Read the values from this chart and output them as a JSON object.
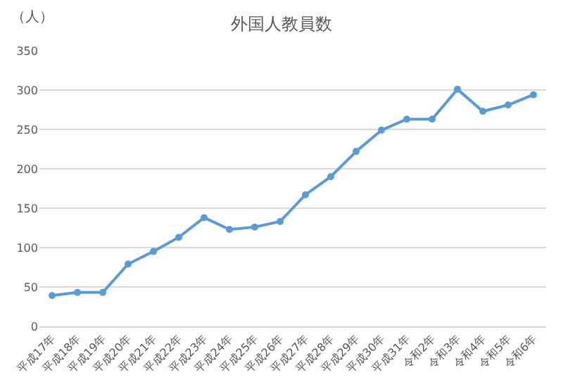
{
  "chart_data": {
    "type": "line",
    "title": "外国人教員数",
    "ylabel": "（人）",
    "categories": [
      "平成17年",
      "平成18年",
      "平成19年",
      "平成20年",
      "平成21年",
      "平成22年",
      "平成23年",
      "平成24年",
      "平成25年",
      "平成26年",
      "平成27年",
      "平成28年",
      "平成29年",
      "平成30年",
      "平成31年",
      "令和2年",
      "令和3年",
      "令和4年",
      "令和5年",
      "令和6年"
    ],
    "series": [
      {
        "color": "#5b9bd5",
        "values": [
          39,
          43,
          43,
          79,
          95,
          113,
          138,
          123,
          126,
          133,
          167,
          190,
          222,
          249,
          263,
          263,
          301,
          273,
          281,
          294
        ]
      }
    ],
    "ylim": [
      0,
      350
    ],
    "yticks": [
      0,
      50,
      100,
      150,
      200,
      250,
      300,
      350
    ],
    "grid": "y",
    "marker": "circle",
    "line_style": "solid"
  }
}
